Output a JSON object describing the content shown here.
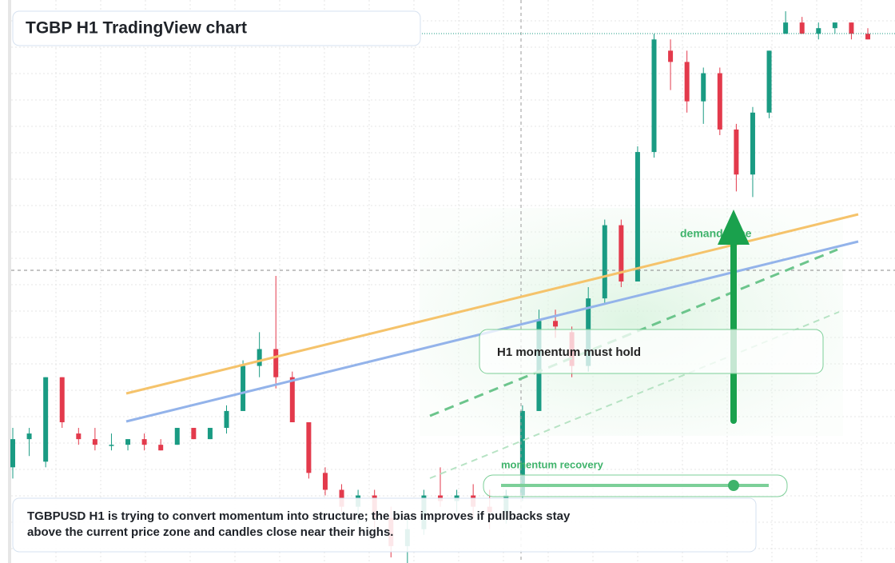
{
  "chart_data": {
    "type": "candlestick",
    "title": "TGBP H1 TradingView chart",
    "annotations": [
      "demand zone",
      "H1 momentum must hold",
      "momentum recovery"
    ],
    "note": "TGBPUSD H1 is trying to convert momentum into structure; the bias improves if pullbacks stay above the current price zone and candles close near their highs.",
    "up_color": "#1a9b83",
    "down_color": "#e33a4c",
    "ylim": [
      0,
      100
    ],
    "ohlc": [
      [
        17,
        24,
        15,
        22
      ],
      [
        22,
        24,
        19,
        23
      ],
      [
        18,
        33,
        17,
        33
      ],
      [
        33,
        33,
        24,
        25
      ],
      [
        23,
        24,
        21,
        22
      ],
      [
        22,
        24,
        20,
        21
      ],
      [
        21,
        23,
        20,
        21
      ],
      [
        21,
        22,
        20,
        22
      ],
      [
        22,
        23,
        20,
        21
      ],
      [
        21,
        22,
        20,
        20
      ],
      [
        21,
        24,
        21,
        24
      ],
      [
        24,
        24,
        22,
        22
      ],
      [
        22,
        24,
        22,
        24
      ],
      [
        24,
        28,
        23,
        27
      ],
      [
        27,
        36,
        27,
        35
      ],
      [
        35,
        41,
        33,
        38
      ],
      [
        38,
        51,
        31,
        33
      ],
      [
        33,
        34,
        25,
        25
      ],
      [
        25,
        25,
        15,
        16
      ],
      [
        16,
        17,
        12,
        13
      ],
      [
        13,
        14,
        9,
        10
      ],
      [
        10,
        13,
        7,
        12
      ],
      [
        12,
        13,
        5,
        8
      ],
      [
        8,
        10,
        1,
        3
      ],
      [
        3,
        8,
        0,
        6
      ],
      [
        6,
        13,
        5,
        12
      ],
      [
        12,
        17,
        10,
        11
      ],
      [
        11,
        13,
        9,
        12
      ],
      [
        12,
        14,
        8,
        10
      ],
      [
        10,
        13,
        6,
        9
      ],
      [
        9,
        13,
        7,
        12
      ],
      [
        12,
        28,
        11,
        27
      ],
      [
        27,
        45,
        27,
        43
      ],
      [
        43,
        45,
        40,
        42
      ],
      [
        41,
        42,
        33,
        35
      ],
      [
        35,
        49,
        34,
        47
      ],
      [
        47,
        61,
        46,
        60
      ],
      [
        60,
        61,
        49,
        50
      ],
      [
        50,
        74,
        50,
        73
      ],
      [
        73,
        94,
        72,
        93
      ],
      [
        91,
        93,
        84,
        89
      ],
      [
        89,
        91,
        80,
        82
      ],
      [
        82,
        88,
        78,
        87
      ],
      [
        87,
        88,
        76,
        77
      ],
      [
        77,
        78,
        66,
        69
      ],
      [
        69,
        81,
        65,
        80
      ],
      [
        80,
        91,
        79,
        91
      ],
      [
        94,
        98,
        94,
        96
      ],
      [
        96,
        97,
        94,
        94
      ],
      [
        94,
        96,
        93,
        95
      ],
      [
        95,
        96,
        94,
        96
      ],
      [
        96,
        96,
        93,
        94
      ],
      [
        94,
        95,
        93,
        93
      ]
    ]
  }
}
